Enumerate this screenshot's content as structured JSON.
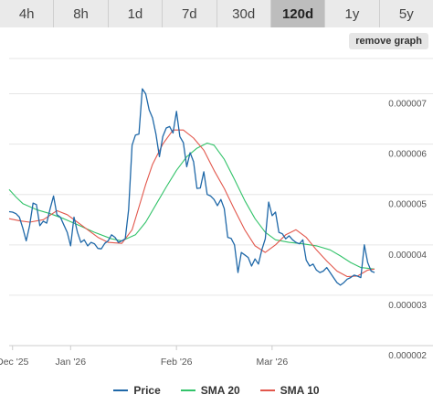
{
  "range_tabs": [
    {
      "label": "4h",
      "active": false
    },
    {
      "label": "8h",
      "active": false
    },
    {
      "label": "1d",
      "active": false
    },
    {
      "label": "7d",
      "active": false
    },
    {
      "label": "30d",
      "active": false
    },
    {
      "label": "120d",
      "active": true
    },
    {
      "label": "1y",
      "active": false
    },
    {
      "label": "5y",
      "active": false
    }
  ],
  "remove_graph_label": "remove graph",
  "colors": {
    "price": "#1f68a8",
    "sma20": "#33c36a",
    "sma10": "#e2574c"
  },
  "chart_data": {
    "type": "line",
    "x_start": "2025-12-14",
    "x_end": "2026-03-31",
    "x_tick_labels": [
      {
        "label": "Dec '25",
        "date": "2025-12-15"
      },
      {
        "label": "Jan '26",
        "date": "2026-01-01"
      },
      {
        "label": "Feb '26",
        "date": "2026-02-01"
      },
      {
        "label": "Mar '26",
        "date": "2026-03-01"
      }
    ],
    "y_tick_labels": [
      "0.000002",
      "0.000003",
      "0.000004",
      "0.000005",
      "0.000006",
      "0.000007"
    ],
    "y_ticks": [
      2e-06,
      3e-06,
      4e-06,
      5e-06,
      6e-06,
      7e-06
    ],
    "ylim": [
      2e-06,
      7.7e-06
    ],
    "grid": true,
    "legend_position": "bottom",
    "series": [
      {
        "name": "Price",
        "key": "price",
        "points": [
          [
            "2025-12-14",
            4.66e-06
          ],
          [
            "2025-12-15",
            4.65e-06
          ],
          [
            "2025-12-16",
            4.62e-06
          ],
          [
            "2025-12-17",
            4.55e-06
          ],
          [
            "2025-12-18",
            4.33e-06
          ],
          [
            "2025-12-19",
            4.08e-06
          ],
          [
            "2025-12-20",
            4.38e-06
          ],
          [
            "2025-12-21",
            4.83e-06
          ],
          [
            "2025-12-22",
            4.8e-06
          ],
          [
            "2025-12-23",
            4.38e-06
          ],
          [
            "2025-12-24",
            4.47e-06
          ],
          [
            "2025-12-25",
            4.43e-06
          ],
          [
            "2025-12-26",
            4.72e-06
          ],
          [
            "2025-12-27",
            4.97e-06
          ],
          [
            "2025-12-28",
            4.6e-06
          ],
          [
            "2025-12-29",
            4.55e-06
          ],
          [
            "2025-12-30",
            4.4e-06
          ],
          [
            "2025-12-31",
            4.25e-06
          ],
          [
            "2026-01-01",
            3.98e-06
          ],
          [
            "2026-01-02",
            4.55e-06
          ],
          [
            "2026-01-03",
            4.25e-06
          ],
          [
            "2026-01-04",
            4.05e-06
          ],
          [
            "2026-01-05",
            4.1e-06
          ],
          [
            "2026-01-06",
            3.98e-06
          ],
          [
            "2026-01-07",
            4.05e-06
          ],
          [
            "2026-01-08",
            4.02e-06
          ],
          [
            "2026-01-09",
            3.93e-06
          ],
          [
            "2026-01-10",
            3.92e-06
          ],
          [
            "2026-01-11",
            4.03e-06
          ],
          [
            "2026-01-12",
            4.08e-06
          ],
          [
            "2026-01-13",
            4.2e-06
          ],
          [
            "2026-01-14",
            4.15e-06
          ],
          [
            "2026-01-15",
            4.05e-06
          ],
          [
            "2026-01-16",
            4.08e-06
          ],
          [
            "2026-01-17",
            4.12e-06
          ],
          [
            "2026-01-18",
            4.7e-06
          ],
          [
            "2026-01-19",
            5.98e-06
          ],
          [
            "2026-01-20",
            6.18e-06
          ],
          [
            "2026-01-21",
            6.2e-06
          ],
          [
            "2026-01-22",
            7.1e-06
          ],
          [
            "2026-01-23",
            7e-06
          ],
          [
            "2026-01-24",
            6.68e-06
          ],
          [
            "2026-01-25",
            6.52e-06
          ],
          [
            "2026-01-26",
            6.2e-06
          ],
          [
            "2026-01-27",
            5.75e-06
          ],
          [
            "2026-01-28",
            6.15e-06
          ],
          [
            "2026-01-29",
            6.32e-06
          ],
          [
            "2026-01-30",
            6.35e-06
          ],
          [
            "2026-01-31",
            6.22e-06
          ],
          [
            "2026-02-01",
            6.65e-06
          ],
          [
            "2026-02-02",
            6.15e-06
          ],
          [
            "2026-02-03",
            6.03e-06
          ],
          [
            "2026-02-04",
            5.55e-06
          ],
          [
            "2026-02-05",
            5.83e-06
          ],
          [
            "2026-02-06",
            5.65e-06
          ],
          [
            "2026-02-07",
            5.12e-06
          ],
          [
            "2026-02-08",
            5.13e-06
          ],
          [
            "2026-02-09",
            5.45e-06
          ],
          [
            "2026-02-10",
            5e-06
          ],
          [
            "2026-02-11",
            4.97e-06
          ],
          [
            "2026-02-12",
            4.9e-06
          ],
          [
            "2026-02-13",
            4.78e-06
          ],
          [
            "2026-02-14",
            4.9e-06
          ],
          [
            "2026-02-15",
            4.72e-06
          ],
          [
            "2026-02-16",
            4.15e-06
          ],
          [
            "2026-02-17",
            4.13e-06
          ],
          [
            "2026-02-18",
            4e-06
          ],
          [
            "2026-02-19",
            3.45e-06
          ],
          [
            "2026-02-20",
            3.85e-06
          ],
          [
            "2026-02-21",
            3.8e-06
          ],
          [
            "2026-02-22",
            3.75e-06
          ],
          [
            "2026-02-23",
            3.58e-06
          ],
          [
            "2026-02-24",
            3.72e-06
          ],
          [
            "2026-02-25",
            3.62e-06
          ],
          [
            "2026-02-26",
            3.9e-06
          ],
          [
            "2026-02-27",
            4.12e-06
          ],
          [
            "2026-02-28",
            4.85e-06
          ],
          [
            "2026-03-01",
            4.58e-06
          ],
          [
            "2026-03-02",
            4.65e-06
          ],
          [
            "2026-03-03",
            4.25e-06
          ],
          [
            "2026-03-04",
            4.22e-06
          ],
          [
            "2026-03-05",
            4.12e-06
          ],
          [
            "2026-03-06",
            4.18e-06
          ],
          [
            "2026-03-07",
            4.1e-06
          ],
          [
            "2026-03-08",
            4.05e-06
          ],
          [
            "2026-03-09",
            4.02e-06
          ],
          [
            "2026-03-10",
            4.1e-06
          ],
          [
            "2026-03-11",
            3.7e-06
          ],
          [
            "2026-03-12",
            3.58e-06
          ],
          [
            "2026-03-13",
            3.62e-06
          ],
          [
            "2026-03-14",
            3.5e-06
          ],
          [
            "2026-03-15",
            3.45e-06
          ],
          [
            "2026-03-16",
            3.48e-06
          ],
          [
            "2026-03-17",
            3.55e-06
          ],
          [
            "2026-03-18",
            3.45e-06
          ],
          [
            "2026-03-19",
            3.35e-06
          ],
          [
            "2026-03-20",
            3.25e-06
          ],
          [
            "2026-03-21",
            3.2e-06
          ],
          [
            "2026-03-22",
            3.25e-06
          ],
          [
            "2026-03-23",
            3.32e-06
          ],
          [
            "2026-03-24",
            3.35e-06
          ],
          [
            "2026-03-25",
            3.4e-06
          ],
          [
            "2026-03-26",
            3.38e-06
          ],
          [
            "2026-03-27",
            3.35e-06
          ],
          [
            "2026-03-28",
            4e-06
          ],
          [
            "2026-03-29",
            3.65e-06
          ],
          [
            "2026-03-30",
            3.48e-06
          ],
          [
            "2026-03-31",
            3.45e-06
          ]
        ]
      },
      {
        "name": "SMA 20",
        "key": "sma20",
        "points": [
          [
            "2025-12-14",
            5.1e-06
          ],
          [
            "2025-12-16",
            4.95e-06
          ],
          [
            "2025-12-18",
            4.82e-06
          ],
          [
            "2025-12-22",
            4.7e-06
          ],
          [
            "2025-12-26",
            4.62e-06
          ],
          [
            "2025-12-30",
            4.52e-06
          ],
          [
            "2026-01-03",
            4.4e-06
          ],
          [
            "2026-01-08",
            4.25e-06
          ],
          [
            "2026-01-13",
            4.12e-06
          ],
          [
            "2026-01-16",
            4.08e-06
          ],
          [
            "2026-01-20",
            4.2e-06
          ],
          [
            "2026-01-23",
            4.45e-06
          ],
          [
            "2026-01-26",
            4.8e-06
          ],
          [
            "2026-01-29",
            5.15e-06
          ],
          [
            "2026-02-01",
            5.48e-06
          ],
          [
            "2026-02-04",
            5.75e-06
          ],
          [
            "2026-02-07",
            5.92e-06
          ],
          [
            "2026-02-10",
            6.02e-06
          ],
          [
            "2026-02-12",
            5.98e-06
          ],
          [
            "2026-02-15",
            5.7e-06
          ],
          [
            "2026-02-18",
            5.3e-06
          ],
          [
            "2026-02-21",
            4.88e-06
          ],
          [
            "2026-02-24",
            4.52e-06
          ],
          [
            "2026-02-27",
            4.25e-06
          ],
          [
            "2026-03-02",
            4.1e-06
          ],
          [
            "2026-03-06",
            4.05e-06
          ],
          [
            "2026-03-10",
            4.02e-06
          ],
          [
            "2026-03-14",
            3.98e-06
          ],
          [
            "2026-03-18",
            3.9e-06
          ],
          [
            "2026-03-21",
            3.78e-06
          ],
          [
            "2026-03-24",
            3.65e-06
          ],
          [
            "2026-03-27",
            3.55e-06
          ],
          [
            "2026-03-31",
            3.52e-06
          ]
        ]
      },
      {
        "name": "SMA 10",
        "key": "sma10",
        "points": [
          [
            "2025-12-14",
            4.52e-06
          ],
          [
            "2025-12-17",
            4.48e-06
          ],
          [
            "2025-12-20",
            4.45e-06
          ],
          [
            "2025-12-24",
            4.5e-06
          ],
          [
            "2025-12-28",
            4.68e-06
          ],
          [
            "2025-12-31",
            4.6e-06
          ],
          [
            "2026-01-03",
            4.45e-06
          ],
          [
            "2026-01-06",
            4.3e-06
          ],
          [
            "2026-01-09",
            4.15e-06
          ],
          [
            "2026-01-12",
            4.05e-06
          ],
          [
            "2026-01-16",
            4.03e-06
          ],
          [
            "2026-01-19",
            4.3e-06
          ],
          [
            "2026-01-21",
            4.75e-06
          ],
          [
            "2026-01-23",
            5.2e-06
          ],
          [
            "2026-01-25",
            5.6e-06
          ],
          [
            "2026-01-28",
            6e-06
          ],
          [
            "2026-01-31",
            6.28e-06
          ],
          [
            "2026-02-03",
            6.28e-06
          ],
          [
            "2026-02-06",
            6.12e-06
          ],
          [
            "2026-02-09",
            5.88e-06
          ],
          [
            "2026-02-12",
            5.48e-06
          ],
          [
            "2026-02-15",
            5.12e-06
          ],
          [
            "2026-02-18",
            4.7e-06
          ],
          [
            "2026-02-21",
            4.3e-06
          ],
          [
            "2026-02-24",
            3.98e-06
          ],
          [
            "2026-02-27",
            3.85e-06
          ],
          [
            "2026-03-02",
            4e-06
          ],
          [
            "2026-03-05",
            4.2e-06
          ],
          [
            "2026-03-08",
            4.3e-06
          ],
          [
            "2026-03-11",
            4.15e-06
          ],
          [
            "2026-03-14",
            3.9e-06
          ],
          [
            "2026-03-17",
            3.68e-06
          ],
          [
            "2026-03-20",
            3.48e-06
          ],
          [
            "2026-03-23",
            3.37e-06
          ],
          [
            "2026-03-26",
            3.38e-06
          ],
          [
            "2026-03-29",
            3.5e-06
          ],
          [
            "2026-03-31",
            3.52e-06
          ]
        ]
      }
    ]
  }
}
